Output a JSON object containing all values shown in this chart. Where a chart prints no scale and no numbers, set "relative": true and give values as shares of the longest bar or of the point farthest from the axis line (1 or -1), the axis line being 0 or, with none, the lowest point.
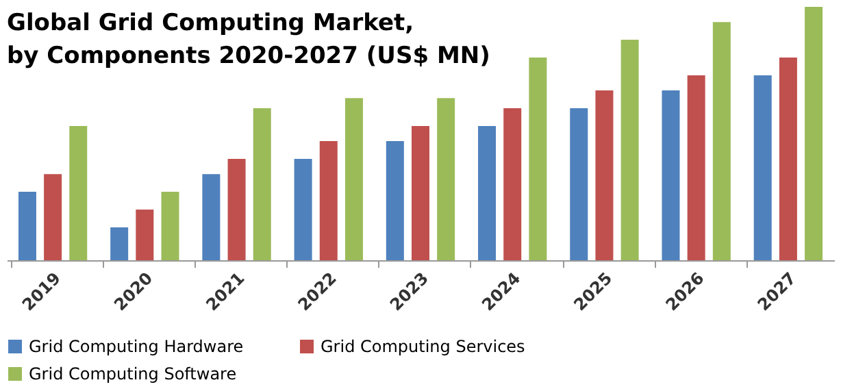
{
  "chart_data": {
    "type": "bar",
    "title": "Global Grid Computing Market, by Components 2020-2027 (US$ MN)",
    "relative": true,
    "legend": "bottom left",
    "categories": [
      "2019",
      "2020",
      "2021",
      "2022",
      "2023",
      "2024",
      "2025",
      "2026",
      "2027"
    ],
    "series": [
      {
        "name": "Grid Computing Hardware",
        "color": "#4f81bd",
        "values": [
          0.27,
          0.13,
          0.34,
          0.4,
          0.47,
          0.53,
          0.6,
          0.67,
          0.73
        ]
      },
      {
        "name": "Grid Computing Services",
        "color": "#c0504d",
        "values": [
          0.34,
          0.2,
          0.4,
          0.47,
          0.53,
          0.6,
          0.67,
          0.73,
          0.8
        ]
      },
      {
        "name": "Grid Computing Software",
        "color": "#9bbb59",
        "values": [
          0.53,
          0.27,
          0.6,
          0.64,
          0.64,
          0.8,
          0.87,
          0.94,
          1.0
        ]
      }
    ]
  }
}
